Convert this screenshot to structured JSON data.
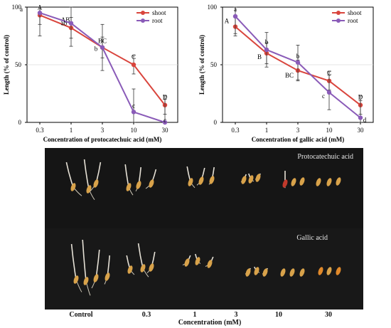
{
  "chart_data": [
    {
      "type": "line",
      "xlabel": "Concentration of protocatechuic acid (mM)",
      "ylabel": "Length (% of control)",
      "categories": [
        "0.3",
        "1",
        "3",
        "10",
        "30"
      ],
      "yticks": [
        0,
        50,
        100
      ],
      "ylim": [
        0,
        100
      ],
      "legend": "top-right",
      "series": [
        {
          "name": "shoot",
          "color": "#d9453d",
          "values": [
            93,
            82,
            65,
            50,
            15
          ],
          "errors": [
            8,
            9,
            9,
            8,
            8
          ],
          "letters": [
            "A",
            "AB",
            "BC",
            "C",
            "D"
          ]
        },
        {
          "name": "root",
          "color": "#8a5bb8",
          "values": [
            95,
            86,
            65,
            9,
            0
          ],
          "errors": [
            20,
            20,
            20,
            20,
            20
          ],
          "letters": [
            "a",
            "ab",
            "b",
            "c",
            "c"
          ]
        }
      ]
    },
    {
      "type": "line",
      "xlabel": "Concentration of gallic acid (mM)",
      "ylabel": "Length (% of control)",
      "categories": [
        "0.3",
        "1",
        "3",
        "10",
        "30"
      ],
      "yticks": [
        0,
        50,
        100
      ],
      "ylim": [
        0,
        100
      ],
      "legend": "top-right",
      "series": [
        {
          "name": "shoot",
          "color": "#d9453d",
          "values": [
            83,
            60,
            45,
            36,
            15
          ],
          "errors": [
            8,
            9,
            9,
            8,
            8
          ],
          "letters": [
            "A",
            "B",
            "BC",
            "C",
            "D"
          ]
        },
        {
          "name": "root",
          "color": "#8a5bb8",
          "values": [
            92,
            63,
            52,
            26,
            4
          ],
          "errors": [
            15,
            15,
            15,
            15,
            15
          ],
          "letters": [
            "a",
            "b",
            "b",
            "c",
            "d"
          ]
        }
      ]
    }
  ],
  "photo": {
    "top_title": "Protocatechuic acid",
    "bottom_title": "Gallic acid",
    "columns": [
      "Control",
      "0.3",
      "1",
      "3",
      "10",
      "30"
    ],
    "caption": "Concentration (mM)"
  }
}
